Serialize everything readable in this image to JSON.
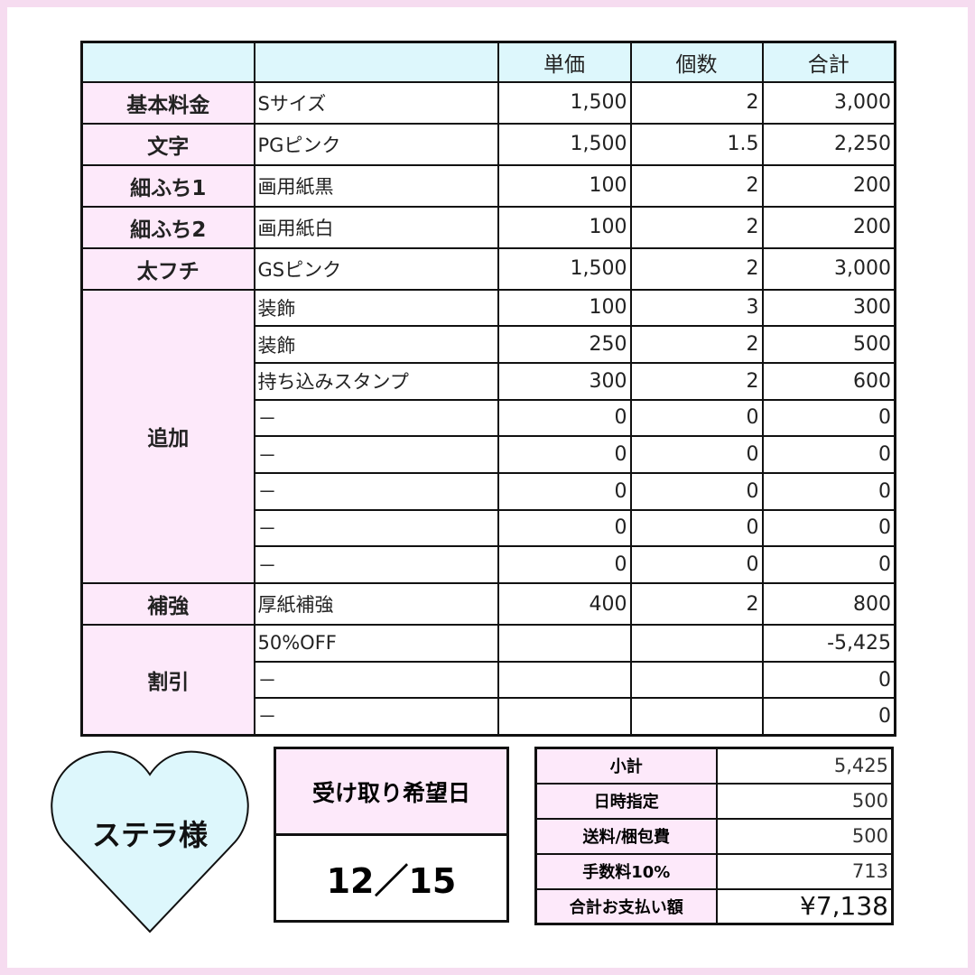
{
  "colors": {
    "border": "#f6dcf0",
    "header": "#ddf7fc",
    "category": "#fde9fa",
    "heart": "#ddf7fc"
  },
  "headers": [
    "",
    "",
    "単価",
    "個数",
    "合計"
  ],
  "groups": [
    {
      "category": "基本料金",
      "rows": [
        {
          "item": "Sサイズ",
          "price": "1,500",
          "qty": "2",
          "total": "3,000"
        }
      ]
    },
    {
      "category": "文字",
      "rows": [
        {
          "item": "PGピンク",
          "price": "1,500",
          "qty": "1.5",
          "total": "2,250"
        }
      ]
    },
    {
      "category": "細ふち1",
      "rows": [
        {
          "item": "画用紙黒",
          "price": "100",
          "qty": "2",
          "total": "200"
        }
      ]
    },
    {
      "category": "細ふち2",
      "rows": [
        {
          "item": "画用紙白",
          "price": "100",
          "qty": "2",
          "total": "200"
        }
      ]
    },
    {
      "category": "太フチ",
      "rows": [
        {
          "item": "GSピンク",
          "price": "1,500",
          "qty": "2",
          "total": "3,000"
        }
      ]
    },
    {
      "category": "追加",
      "dotted": true,
      "rows": [
        {
          "item": "装飾",
          "price": "100",
          "qty": "3",
          "total": "300"
        },
        {
          "item": "装飾",
          "price": "250",
          "qty": "2",
          "total": "500"
        },
        {
          "item": "持ち込みスタンプ",
          "price": "300",
          "qty": "2",
          "total": "600"
        },
        {
          "item": "－",
          "price": "0",
          "qty": "0",
          "total": "0"
        },
        {
          "item": "－",
          "price": "0",
          "qty": "0",
          "total": "0"
        },
        {
          "item": "－",
          "price": "0",
          "qty": "0",
          "total": "0"
        },
        {
          "item": "－",
          "price": "0",
          "qty": "0",
          "total": "0"
        },
        {
          "item": "－",
          "price": "0",
          "qty": "0",
          "total": "0"
        }
      ]
    },
    {
      "category": "補強",
      "rows": [
        {
          "item": "厚紙補強",
          "price": "400",
          "qty": "2",
          "total": "800"
        }
      ]
    },
    {
      "category": "割引",
      "rows": [
        {
          "item": "50%OFF",
          "price": "",
          "qty": "",
          "total": "-5,425"
        },
        {
          "item": "－",
          "price": "",
          "qty": "",
          "total": "0"
        },
        {
          "item": "－",
          "price": "",
          "qty": "",
          "total": "0"
        }
      ]
    }
  ],
  "customer": "ステラ様",
  "date_box": {
    "label": "受け取り希望日",
    "value": "12／15"
  },
  "summary": [
    {
      "label": "小計",
      "value": "5,425"
    },
    {
      "label": "日時指定",
      "value": "500"
    },
    {
      "label": "送料/梱包費",
      "value": "500"
    },
    {
      "label": "手数料10%",
      "value": "713"
    },
    {
      "label": "合計お支払い額",
      "value": "¥7,138",
      "emphasis": true
    }
  ]
}
